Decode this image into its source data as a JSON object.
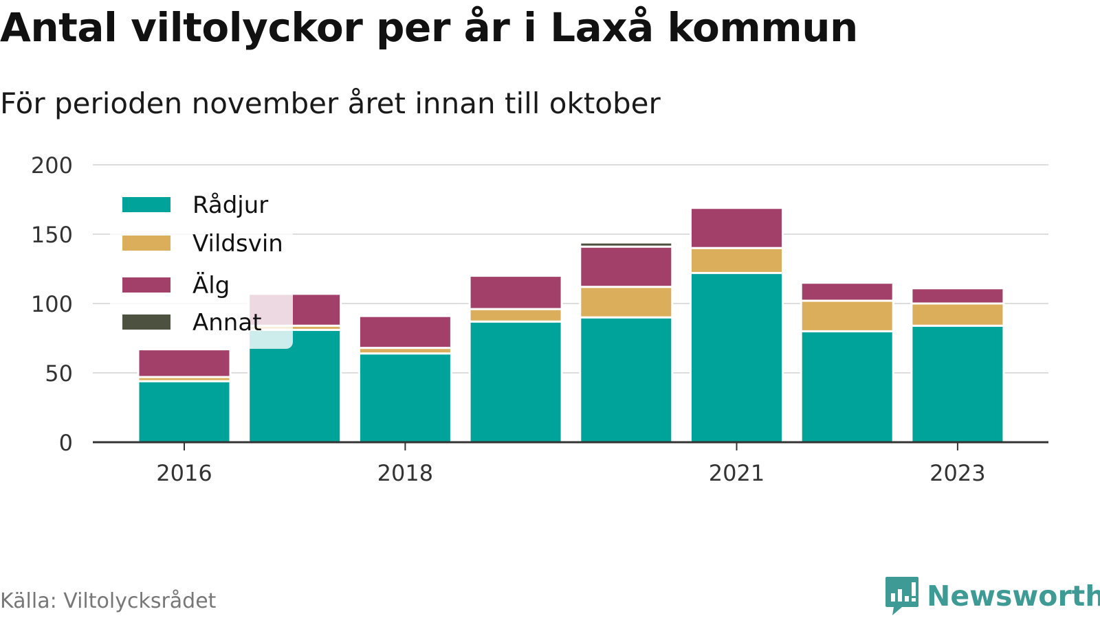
{
  "header": {
    "title": "Antal viltolyckor per år i Laxå kommun",
    "subtitle": "För perioden november året innan till oktober"
  },
  "footer": {
    "source": "Källa: Viltolycksrådet",
    "brand": "Newsworthy"
  },
  "colors": {
    "Rådjur": "#00a39a",
    "Vildsvin": "#dbae5b",
    "Älg": "#a34069",
    "Annat": "#4d5140",
    "grid": "#dddddd",
    "axis": "#333333"
  },
  "chart_data": {
    "type": "bar",
    "stacked": true,
    "categories": [
      "2016",
      "2017",
      "2018",
      "2019",
      "2020",
      "2021",
      "2022",
      "2023"
    ],
    "x_tick_labels": [
      "2016",
      "",
      "2018",
      "",
      "",
      "2021",
      "",
      "2023"
    ],
    "series": [
      {
        "name": "Rådjur",
        "values": [
          44,
          81,
          64,
          87,
          90,
          122,
          80,
          84
        ]
      },
      {
        "name": "Vildsvin",
        "values": [
          3,
          3,
          4,
          9,
          22,
          18,
          22,
          16
        ]
      },
      {
        "name": "Älg",
        "values": [
          20,
          23,
          23,
          24,
          29,
          29,
          13,
          11
        ]
      },
      {
        "name": "Annat",
        "values": [
          0,
          0,
          0,
          0,
          3,
          1,
          0,
          0
        ]
      }
    ],
    "y_ticks": [
      0,
      50,
      100,
      150,
      200
    ],
    "ylim": [
      0,
      200
    ],
    "grid": true,
    "legend_position": "top-left"
  }
}
